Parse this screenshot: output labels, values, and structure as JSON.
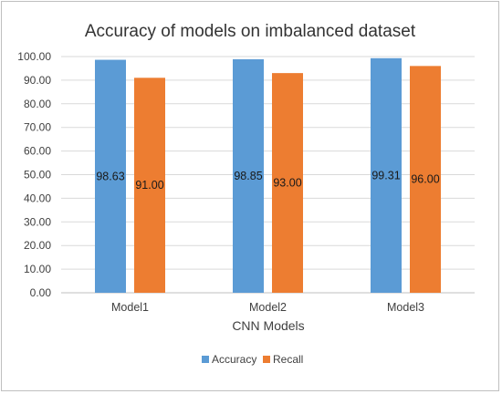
{
  "chart_data": {
    "type": "bar",
    "title": "Accuracy of models on imbalanced dataset",
    "xlabel": "CNN Models",
    "ylabel": "",
    "categories": [
      "Model1",
      "Model2",
      "Model3"
    ],
    "series": [
      {
        "name": "Accuracy",
        "values": [
          98.63,
          98.85,
          99.31
        ],
        "labels": [
          "98.63",
          "98.85",
          "99.31"
        ],
        "color": "#5B9BD5"
      },
      {
        "name": "Recall",
        "values": [
          91.0,
          93.0,
          96.0
        ],
        "labels": [
          "91.00",
          "93.00",
          "96.00"
        ],
        "color": "#ED7D31"
      }
    ],
    "ylim": [
      0,
      100
    ],
    "yticks": [
      "0.00",
      "10.00",
      "20.00",
      "30.00",
      "40.00",
      "50.00",
      "60.00",
      "70.00",
      "80.00",
      "90.00",
      "100.00"
    ],
    "grid": true,
    "legend": "bottom"
  }
}
